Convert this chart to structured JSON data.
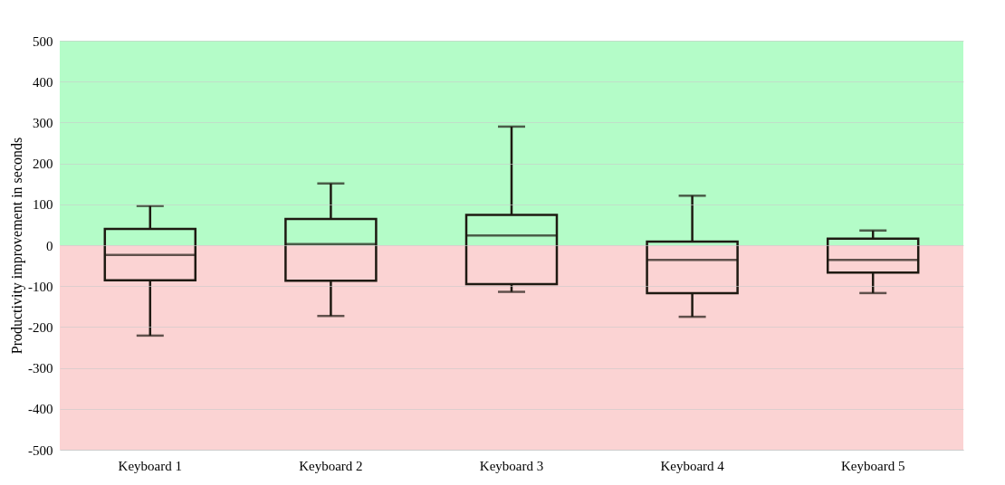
{
  "chart_data": {
    "type": "box",
    "ylabel": "Productivity improvement in seconds",
    "categories": [
      "Keyboard 1",
      "Keyboard 2",
      "Keyboard 3",
      "Keyboard 4",
      "Keyboard 5"
    ],
    "boxes": [
      {
        "low": -221,
        "q1": -86,
        "median": -24,
        "q3": 40,
        "high": 96
      },
      {
        "low": -173,
        "q1": -87,
        "median": 3,
        "q3": 64,
        "high": 151
      },
      {
        "low": -114,
        "q1": -95,
        "median": 24,
        "q3": 74,
        "high": 290
      },
      {
        "low": -175,
        "q1": -117,
        "median": -36,
        "q3": 9,
        "high": 121
      },
      {
        "low": -117,
        "q1": -67,
        "median": -36,
        "q3": 16,
        "high": 36
      }
    ],
    "color": "#1e1a12",
    "ylim": [
      -500,
      500
    ],
    "yticks": [
      -500,
      -400,
      -300,
      -200,
      -100,
      0,
      100,
      200,
      300,
      400,
      500
    ],
    "grid": "y",
    "bands": [
      {
        "axis": "y",
        "from": 0,
        "to": 500,
        "color": "#b4fcc8"
      },
      {
        "axis": "y",
        "from": -500,
        "to": 0,
        "color": "#fbd3d3"
      }
    ]
  }
}
